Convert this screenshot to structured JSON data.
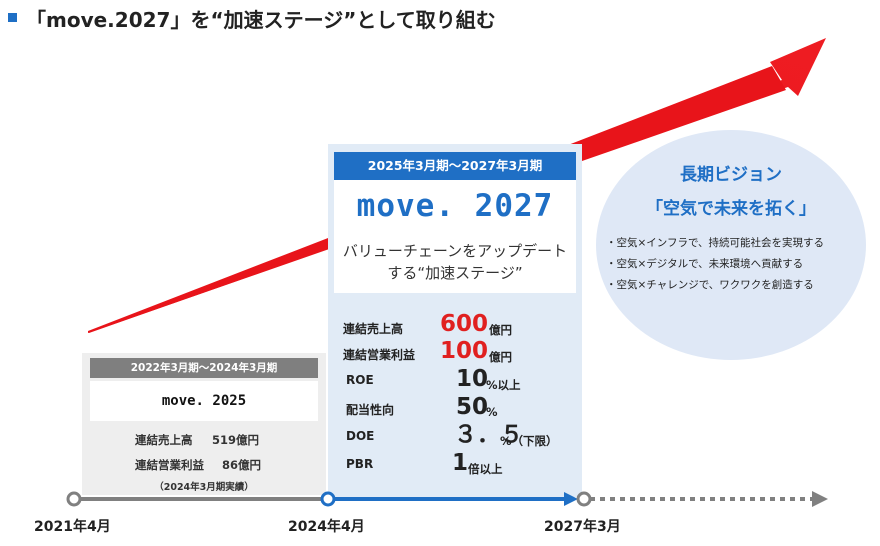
{
  "header": {
    "title": "「move.2027」を“加速ステージ”として取り組む"
  },
  "vision": {
    "title": "長期ビジョン",
    "subtitle": "「空気で未来を拓く」",
    "points": [
      "・空気×インフラで、持続可能社会を実現する",
      "・空気×デジタルで、未来環境へ貢献する",
      "・空気×チャレンジで、ワクワクを創造する"
    ]
  },
  "old_plan": {
    "period": "2022年3月期～2024年3月期",
    "name": "move. 2025",
    "sales_label": "連結売上高",
    "sales_value": "519億円",
    "profit_label": "連結営業利益",
    "profit_value": "86億円",
    "note": "（2024年3月期実績）"
  },
  "new_plan": {
    "period": "2025年3月期～2027年3月期",
    "name": "move. 2027",
    "desc_line1": "バリューチェーンをアップデート",
    "desc_line2": "する“加速ステージ”",
    "kpis": [
      {
        "label": "連結売上高",
        "value": "600",
        "unit": "億円"
      },
      {
        "label": "連結営業利益",
        "value": "100",
        "unit": "億円"
      },
      {
        "label": "ROE",
        "value": "10",
        "unit": "%以上"
      },
      {
        "label": "配当性向",
        "value": "50",
        "unit": "%"
      },
      {
        "label": "DOE",
        "value": "３．５",
        "unit": "%（下限）"
      },
      {
        "label": "PBR",
        "value": "1",
        "unit": "倍以上"
      }
    ]
  },
  "timeline": {
    "labels": [
      "2021年4月",
      "2024年4月",
      "2027年3月"
    ]
  },
  "colors": {
    "accent_blue": "#1f6fc5",
    "arrow_red": "#e8141a",
    "highlight_red": "#e02020",
    "old_gray": "#7f7f7f",
    "timeline_gray": "#808080"
  }
}
